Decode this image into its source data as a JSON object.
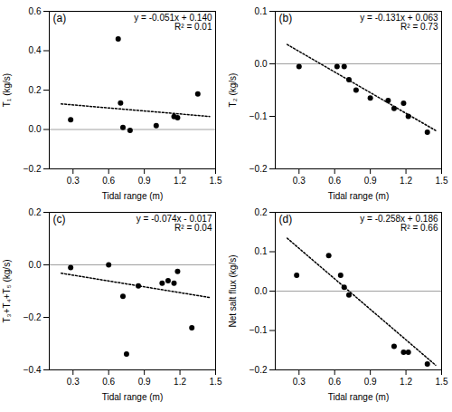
{
  "chart_data": [
    {
      "type": "scatter",
      "title": "(a)",
      "xlabel": "Tidal range (m)",
      "ylabel": "T₁ (kg/s)",
      "annotations": [
        "y = -0.051x + 0.140",
        "R² = 0.01"
      ],
      "xlim": [
        0.1,
        1.5
      ],
      "xticks": [
        0.3,
        0.6,
        0.9,
        1.2,
        1.5
      ],
      "ylim": [
        -0.2,
        0.6
      ],
      "yticks": [
        -0.2,
        {
          "value": 0,
          "label": "0.0"
        },
        0.2,
        0.4,
        0.6
      ],
      "series": [
        {
          "type": "line",
          "line_style": "solid",
          "color": "#888888",
          "x": [
            0.1,
            1.5
          ],
          "values": [
            0,
            0
          ]
        },
        {
          "type": "line",
          "line_style": "dotted",
          "color": "#000000",
          "x": [
            0.2,
            1.45
          ],
          "values": [
            0.1298,
            0.06605
          ]
        },
        {
          "type": "scatter",
          "marker": "circle",
          "color": "#000000",
          "x": [
            0.28,
            0.68,
            0.7,
            0.72,
            0.78,
            1.0,
            1.15,
            1.18,
            1.35
          ],
          "values": [
            0.05,
            0.46,
            0.135,
            0.01,
            -0.005,
            0.02,
            0.065,
            0.06,
            0.18
          ]
        }
      ]
    },
    {
      "type": "scatter",
      "title": "(b)",
      "xlabel": "Tidal range (m)",
      "ylabel": "T₂ (kg/s)",
      "annotations": [
        "y = -0.131x + 0.063",
        "R² = 0.73"
      ],
      "xlim": [
        0.1,
        1.5
      ],
      "xticks": [
        0.3,
        0.6,
        0.9,
        1.2,
        1.5
      ],
      "ylim": [
        -0.2,
        0.1
      ],
      "yticks": [
        -0.2,
        -0.1,
        {
          "value": 0,
          "label": "0.0"
        },
        0.1
      ],
      "series": [
        {
          "type": "line",
          "line_style": "solid",
          "color": "#888888",
          "x": [
            0.1,
            1.5
          ],
          "values": [
            0,
            0
          ]
        },
        {
          "type": "line",
          "line_style": "dotted",
          "color": "#000000",
          "x": [
            0.2,
            1.45
          ],
          "values": [
            0.0368,
            -0.12695
          ]
        },
        {
          "type": "scatter",
          "marker": "circle",
          "color": "#000000",
          "x": [
            0.3,
            0.62,
            0.68,
            0.72,
            0.78,
            0.9,
            1.05,
            1.1,
            1.18,
            1.22,
            1.38
          ],
          "values": [
            -0.005,
            -0.005,
            -0.005,
            -0.03,
            -0.05,
            -0.065,
            -0.07,
            -0.085,
            -0.075,
            -0.1,
            -0.13
          ]
        }
      ]
    },
    {
      "type": "scatter",
      "title": "(c)",
      "xlabel": "Tidal range (m)",
      "ylabel": "T₃+T₄+T₅ (kg/s)",
      "annotations": [
        "y = -0.074x - 0.017",
        "R² = 0.04"
      ],
      "xlim": [
        0.1,
        1.5
      ],
      "xticks": [
        0.3,
        0.6,
        0.9,
        1.2,
        1.5
      ],
      "ylim": [
        -0.4,
        0.2
      ],
      "yticks": [
        -0.4,
        -0.2,
        {
          "value": 0,
          "label": "0.0"
        },
        0.2
      ],
      "series": [
        {
          "type": "line",
          "line_style": "solid",
          "color": "#888888",
          "x": [
            0.1,
            1.5
          ],
          "values": [
            0,
            0
          ]
        },
        {
          "type": "line",
          "line_style": "dotted",
          "color": "#000000",
          "x": [
            0.2,
            1.45
          ],
          "values": [
            -0.0318,
            -0.1243
          ]
        },
        {
          "type": "scatter",
          "marker": "circle",
          "color": "#000000",
          "x": [
            0.28,
            0.6,
            0.72,
            0.75,
            0.85,
            1.05,
            1.1,
            1.15,
            1.18,
            1.3
          ],
          "values": [
            -0.01,
            0.0,
            -0.12,
            -0.34,
            -0.08,
            -0.07,
            -0.06,
            -0.07,
            -0.025,
            -0.24
          ]
        }
      ]
    },
    {
      "type": "scatter",
      "title": "(d)",
      "xlabel": "Tidal range (m)",
      "ylabel": "Net salt flux (kg/s)",
      "annotations": [
        "y = -0.258x + 0.186",
        "R² = 0.66"
      ],
      "xlim": [
        0.1,
        1.5
      ],
      "xticks": [
        0.3,
        0.6,
        0.9,
        1.2,
        1.5
      ],
      "ylim": [
        -0.2,
        0.2
      ],
      "yticks": [
        -0.2,
        -0.1,
        {
          "value": 0,
          "label": "0.0"
        },
        0.1,
        0.2
      ],
      "series": [
        {
          "type": "line",
          "line_style": "solid",
          "color": "#888888",
          "x": [
            0.1,
            1.5
          ],
          "values": [
            0,
            0
          ]
        },
        {
          "type": "line",
          "line_style": "dotted",
          "color": "#000000",
          "x": [
            0.2,
            1.45
          ],
          "values": [
            0.1344,
            -0.1881
          ]
        },
        {
          "type": "scatter",
          "marker": "circle",
          "color": "#000000",
          "x": [
            0.28,
            0.55,
            0.65,
            0.68,
            0.72,
            1.1,
            1.18,
            1.22,
            1.38
          ],
          "values": [
            0.04,
            0.09,
            0.04,
            0.01,
            -0.01,
            -0.14,
            -0.155,
            -0.155,
            -0.185
          ]
        }
      ]
    }
  ]
}
